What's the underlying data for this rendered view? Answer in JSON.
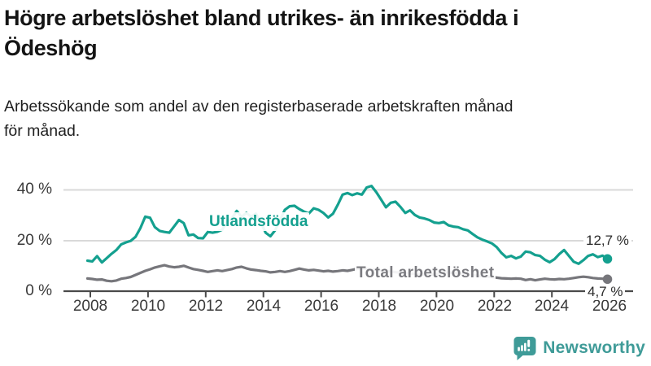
{
  "header": {
    "title_line1": "Högre arbetslöshet bland utrikes- än inrikesfödda i",
    "title_line2": "Ödeshög",
    "subtitle_line1": "Arbetssökande som andel av den registerbaserade arbetskraften månad",
    "subtitle_line2": "för månad."
  },
  "chart_data": {
    "type": "line",
    "title": "Högre arbetslöshet bland utrikes- än inrikesfödda i Ödeshög",
    "subtitle": "Arbetssökande som andel av den registerbaserade arbetskraften månad för månad.",
    "grid": "horizontal-only",
    "legend_position": "inline-labels-on-lines",
    "x_axis": {
      "unit": "year",
      "xlim": [
        2007.1,
        2026.8
      ],
      "tick_values": [
        2008,
        2010,
        2012,
        2014,
        2016,
        2018,
        2020,
        2022,
        2024,
        2026
      ],
      "tick_labels": [
        "2008",
        "2010",
        "2012",
        "2014",
        "2016",
        "2018",
        "2020",
        "2022",
        "2024",
        "2026"
      ]
    },
    "y_axis": {
      "unit": "percent",
      "ylim": [
        0,
        47
      ],
      "tick_values_top_to_bottom": [
        40,
        20,
        0
      ],
      "tick_labels": [
        "40 %",
        "20 %",
        "0 %"
      ]
    },
    "series": [
      {
        "name": "Utlandsfödda",
        "color": "#14a08f",
        "end_label": "12,7 %",
        "end_value": 12.7,
        "x_start": 2007.9,
        "x_step": 0.166667,
        "values": [
          12.0,
          11.7,
          13.8,
          11.3,
          13.0,
          14.7,
          16.2,
          18.4,
          19.2,
          19.8,
          21.4,
          24.8,
          29.3,
          28.9,
          25.2,
          23.7,
          23.3,
          23.0,
          25.5,
          28.0,
          26.8,
          22.0,
          22.3,
          20.9,
          20.8,
          23.3,
          23.0,
          23.4,
          24.2,
          27.3,
          28.6,
          31.6,
          29.2,
          30.8,
          29.3,
          30.5,
          27.0,
          23.0,
          21.6,
          24.0,
          28.0,
          32.0,
          33.4,
          33.6,
          32.3,
          31.3,
          30.6,
          32.6,
          32.0,
          30.8,
          29.0,
          30.5,
          34.0,
          38.0,
          38.6,
          37.8,
          38.5,
          38.0,
          40.8,
          41.4,
          38.9,
          36.0,
          33.0,
          34.8,
          35.2,
          33.2,
          30.8,
          31.8,
          30.0,
          29.0,
          28.6,
          28.0,
          27.0,
          26.8,
          27.2,
          25.9,
          25.4,
          25.2,
          24.4,
          23.9,
          22.5,
          21.2,
          20.3,
          19.6,
          18.8,
          17.3,
          15.0,
          13.3,
          13.9,
          12.9,
          13.6,
          15.6,
          15.3,
          14.2,
          13.9,
          12.4,
          11.4,
          12.6,
          14.6,
          16.2,
          13.9,
          11.6,
          10.8,
          12.2,
          13.9,
          14.5,
          13.4,
          14.0,
          12.7
        ]
      },
      {
        "name": "Total arbetslöshet",
        "color": "#76767b",
        "end_label": "4,7 %",
        "end_value": 4.7,
        "x_start": 2007.9,
        "x_step": 0.166667,
        "values": [
          5.0,
          4.8,
          4.5,
          4.6,
          4.1,
          3.9,
          4.2,
          4.9,
          5.2,
          5.6,
          6.4,
          7.2,
          8.0,
          8.6,
          9.3,
          9.8,
          10.2,
          9.7,
          9.4,
          9.6,
          10.0,
          9.3,
          8.7,
          8.4,
          8.0,
          7.6,
          7.9,
          8.2,
          7.9,
          8.3,
          8.7,
          9.3,
          9.6,
          9.0,
          8.5,
          8.3,
          8.0,
          7.8,
          7.4,
          7.6,
          7.9,
          7.6,
          7.9,
          8.4,
          8.9,
          8.5,
          8.2,
          8.4,
          8.1,
          7.8,
          8.0,
          7.7,
          7.9,
          8.2,
          8.0,
          8.4,
          8.8,
          9.0,
          8.8,
          8.6,
          8.4,
          8.1,
          7.9,
          7.7,
          7.5,
          7.3,
          7.1,
          7.0,
          6.8,
          6.7,
          6.6,
          6.5,
          6.6,
          6.9,
          7.2,
          7.4,
          7.2,
          7.0,
          6.8,
          6.6,
          6.3,
          6.1,
          5.9,
          5.7,
          5.5,
          5.3,
          5.1,
          5.0,
          4.9,
          5.0,
          4.9,
          4.4,
          4.7,
          4.3,
          4.6,
          4.9,
          4.7,
          4.6,
          4.8,
          4.7,
          4.9,
          5.2,
          5.5,
          5.7,
          5.5,
          5.2,
          5.0,
          4.9,
          4.7
        ]
      }
    ],
    "colors": {
      "gridline": "#d9d9d9",
      "axis": "#4a4a4a",
      "accent_teal": "#14a08f",
      "series_gray": "#76767b"
    }
  },
  "footer": {
    "brand": "Newsworthy",
    "brand_color": "#3f9b98"
  }
}
